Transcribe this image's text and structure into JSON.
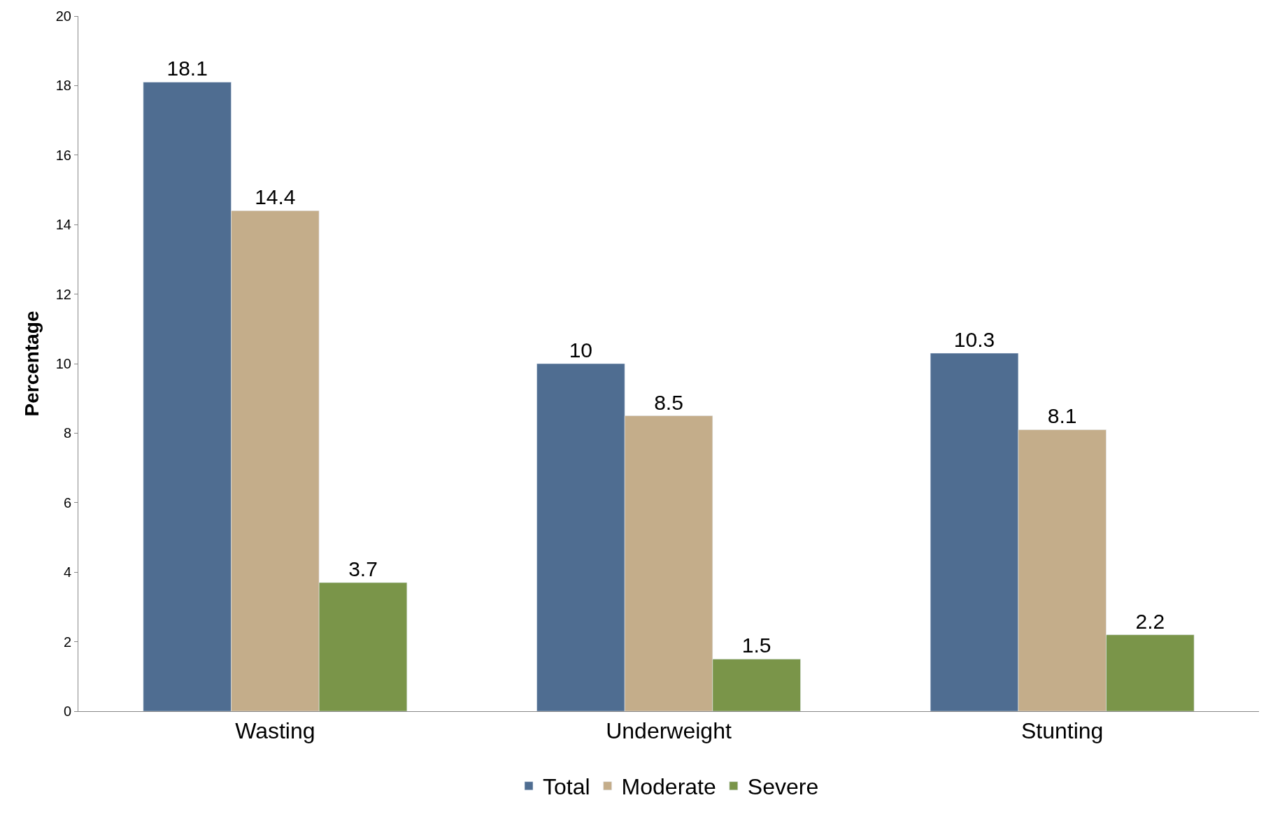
{
  "chart_data": {
    "type": "bar",
    "ylabel": "Percentage",
    "categories": [
      "Wasting",
      "Underweight",
      "Stunting"
    ],
    "series": [
      {
        "name": "Total",
        "color": "#4f6d91",
        "values": [
          18.1,
          10,
          10.3
        ]
      },
      {
        "name": "Moderate",
        "color": "#c4ad8a",
        "values": [
          14.4,
          8.5,
          8.1
        ]
      },
      {
        "name": "Severe",
        "color": "#7a9549",
        "values": [
          3.7,
          1.5,
          2.2
        ]
      }
    ],
    "ylim": [
      0,
      20
    ],
    "yticks": [
      0,
      2,
      4,
      6,
      8,
      10,
      12,
      14,
      16,
      18,
      20
    ],
    "legend": "bottom",
    "data_labels": true
  }
}
